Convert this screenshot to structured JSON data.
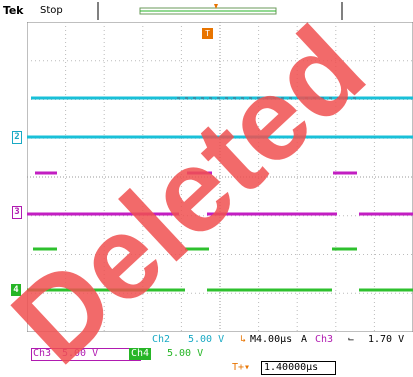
{
  "header": {
    "brand": "Tek",
    "run_state": "Stop",
    "trigger_position_marker": "T"
  },
  "channels": {
    "ch2": {
      "marker": "2",
      "color": "#19a9c4",
      "name": "Ch2",
      "scale": "5.00 V"
    },
    "ch3": {
      "marker": "3",
      "color": "#b01ab0",
      "name": "Ch3",
      "scale": "5.00 V"
    },
    "ch4": {
      "marker": "4",
      "color": "#26b526",
      "name": "Ch4",
      "scale": "5.00 V"
    }
  },
  "timebase": {
    "icon": "timebase-icon",
    "label": "M4.00µs"
  },
  "trigger": {
    "mode": "A",
    "source": "Ch3",
    "slope_icon": "falling-edge-icon",
    "slope_glyph": "⌐",
    "level": "1.70 V"
  },
  "horizontal_position": {
    "icon": "horizontal-position-icon",
    "icon_glyph": "T+▾",
    "value": "1.40000µs"
  },
  "watermark": {
    "text": "Deleted",
    "color": "#f05050"
  }
}
